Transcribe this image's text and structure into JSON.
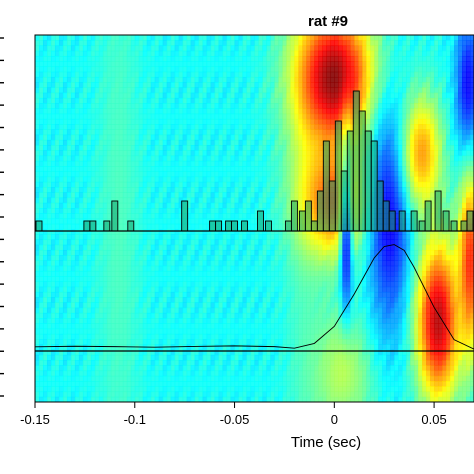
{
  "chart_data": {
    "type": "heatmap",
    "title": "rat #9",
    "xlabel": "Time (sec)",
    "ylabel": "",
    "xlim": [
      -0.15,
      0.07
    ],
    "x_ticks": [
      -0.15,
      -0.1,
      -0.05,
      0,
      0.05
    ],
    "x_tick_labels": [
      "-0.15",
      "-0.1",
      "-0.05",
      "0",
      "0.05"
    ],
    "y_tick_count": 17,
    "grid": false,
    "heatmap": {
      "colormap": "jet",
      "background_level": 0.38,
      "blobs": [
        {
          "t": -0.108,
          "row": 0.5,
          "dt": 0.011,
          "drow": 0.9,
          "level": 0.44
        },
        {
          "t": -0.015,
          "row": 0.5,
          "dt": 0.01,
          "drow": 0.9,
          "level": 0.43
        },
        {
          "t": 0.0,
          "row": 0.12,
          "dt": 0.02,
          "drow": 0.2,
          "level": 1.0
        },
        {
          "t": 0.0,
          "row": 0.45,
          "dt": 0.018,
          "drow": 0.16,
          "level": 0.82
        },
        {
          "t": 0.006,
          "row": 0.63,
          "dt": 0.003,
          "drow": 0.3,
          "level": 0.12
        },
        {
          "t": 0.004,
          "row": 0.92,
          "dt": 0.016,
          "drow": 0.18,
          "level": 0.55
        },
        {
          "t": 0.028,
          "row": 0.5,
          "dt": 0.011,
          "drow": 0.3,
          "level": 0.1
        },
        {
          "t": 0.044,
          "row": 0.32,
          "dt": 0.01,
          "drow": 0.16,
          "level": 0.72
        },
        {
          "t": 0.052,
          "row": 0.78,
          "dt": 0.011,
          "drow": 0.22,
          "level": 0.95
        },
        {
          "t": 0.067,
          "row": 0.15,
          "dt": 0.006,
          "drow": 0.2,
          "level": 0.1
        },
        {
          "t": 0.068,
          "row": 0.62,
          "dt": 0.006,
          "drow": 0.25,
          "level": 0.85
        }
      ]
    },
    "histogram": {
      "bin_width": 0.003,
      "bins": [
        {
          "x": -0.148,
          "count": 1
        },
        {
          "x": -0.124,
          "count": 1
        },
        {
          "x": -0.121,
          "count": 1
        },
        {
          "x": -0.114,
          "count": 1
        },
        {
          "x": -0.11,
          "count": 3
        },
        {
          "x": -0.102,
          "count": 1
        },
        {
          "x": -0.075,
          "count": 3
        },
        {
          "x": -0.061,
          "count": 1
        },
        {
          "x": -0.058,
          "count": 1
        },
        {
          "x": -0.053,
          "count": 1
        },
        {
          "x": -0.05,
          "count": 1
        },
        {
          "x": -0.045,
          "count": 1
        },
        {
          "x": -0.037,
          "count": 2
        },
        {
          "x": -0.033,
          "count": 1
        },
        {
          "x": -0.023,
          "count": 1
        },
        {
          "x": -0.02,
          "count": 3
        },
        {
          "x": -0.016,
          "count": 2
        },
        {
          "x": -0.013,
          "count": 3
        },
        {
          "x": -0.01,
          "count": 1
        },
        {
          "x": -0.007,
          "count": 4
        },
        {
          "x": -0.004,
          "count": 9
        },
        {
          "x": -0.001,
          "count": 5
        },
        {
          "x": 0.002,
          "count": 11
        },
        {
          "x": 0.005,
          "count": 6
        },
        {
          "x": 0.008,
          "count": 10
        },
        {
          "x": 0.011,
          "count": 14
        },
        {
          "x": 0.014,
          "count": 12
        },
        {
          "x": 0.017,
          "count": 10
        },
        {
          "x": 0.02,
          "count": 9
        },
        {
          "x": 0.023,
          "count": 5
        },
        {
          "x": 0.026,
          "count": 3
        },
        {
          "x": 0.029,
          "count": 2
        },
        {
          "x": 0.034,
          "count": 2
        },
        {
          "x": 0.04,
          "count": 2
        },
        {
          "x": 0.044,
          "count": 1
        },
        {
          "x": 0.047,
          "count": 3
        },
        {
          "x": 0.052,
          "count": 4
        },
        {
          "x": 0.056,
          "count": 2
        },
        {
          "x": 0.06,
          "count": 1
        },
        {
          "x": 0.065,
          "count": 1
        },
        {
          "x": 0.068,
          "count": 2
        }
      ]
    },
    "curve": {
      "x": [
        -0.15,
        -0.13,
        -0.11,
        -0.09,
        -0.07,
        -0.05,
        -0.03,
        -0.02,
        -0.01,
        0.0,
        0.01,
        0.02,
        0.025,
        0.03,
        0.035,
        0.04,
        0.05,
        0.06,
        0.07
      ],
      "y": [
        0.22,
        0.25,
        0.23,
        0.2,
        0.24,
        0.27,
        0.23,
        0.15,
        0.4,
        1.3,
        3.0,
        4.9,
        5.5,
        5.6,
        5.3,
        4.4,
        2.3,
        0.6,
        0.1
      ]
    }
  }
}
